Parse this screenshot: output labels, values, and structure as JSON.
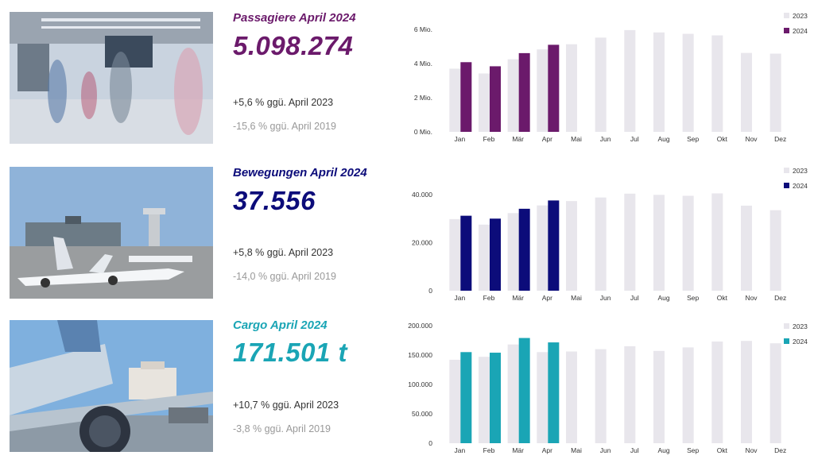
{
  "panels": [
    {
      "id": "passengers",
      "title": "Passagiere April 2024",
      "value": "5.098.274",
      "comparison_2023": "+5,6 % ggü. April 2023",
      "comparison_2019": "-15,6 % ggü. April 2019",
      "accent_color": "#6b1a6b",
      "photo_icon": "airport-terminal-photo"
    },
    {
      "id": "movements",
      "title": "Bewegungen April 2024",
      "value": "37.556",
      "comparison_2023": "+5,8 % ggü. April 2023",
      "comparison_2019": "-14,0 % ggü. April 2019",
      "accent_color": "#0c0c7a",
      "photo_icon": "airplane-apron-photo"
    },
    {
      "id": "cargo",
      "title": "Cargo April 2024",
      "value": "171.501 t",
      "comparison_2023": "+10,7 % ggü. April 2023",
      "comparison_2019": "-3,8 % ggü. April 2019",
      "accent_color": "#1aa5b5",
      "photo_icon": "cargo-loading-photo"
    }
  ],
  "chart_data": [
    {
      "type": "bar",
      "categories": [
        "Jan",
        "Feb",
        "Mär",
        "Apr",
        "Mai",
        "Jun",
        "Jul",
        "Aug",
        "Sep",
        "Okt",
        "Nov",
        "Dez"
      ],
      "series": [
        {
          "name": "2023",
          "color": "#e8e6ec",
          "values": [
            3700000,
            3420000,
            4250000,
            4830000,
            5130000,
            5520000,
            5960000,
            5820000,
            5740000,
            5650000,
            4620000,
            4580000
          ]
        },
        {
          "name": "2024",
          "color": "#6b1a6b",
          "values": [
            4080000,
            3840000,
            4610000,
            5098274,
            null,
            null,
            null,
            null,
            null,
            null,
            null,
            null
          ]
        }
      ],
      "ylim": [
        0,
        6000000
      ],
      "yticks": [
        0,
        2000000,
        4000000,
        6000000
      ],
      "ytick_labels": [
        "0 Mio.",
        "2 Mio.",
        "4 Mio.",
        "6 Mio."
      ],
      "legend": "top-right"
    },
    {
      "type": "bar",
      "categories": [
        "Jan",
        "Feb",
        "Mär",
        "Apr",
        "Mai",
        "Jun",
        "Jul",
        "Aug",
        "Sep",
        "Okt",
        "Nov",
        "Dez"
      ],
      "series": [
        {
          "name": "2023",
          "color": "#e8e6ec",
          "values": [
            29800,
            27500,
            32300,
            35500,
            37300,
            38800,
            40400,
            39900,
            39500,
            40500,
            35400,
            33500
          ]
        },
        {
          "name": "2024",
          "color": "#0c0c7a",
          "values": [
            31200,
            30000,
            34100,
            37556,
            null,
            null,
            null,
            null,
            null,
            null,
            null,
            null
          ]
        }
      ],
      "ylim": [
        0,
        40000
      ],
      "yticks": [
        0,
        20000,
        40000
      ],
      "ytick_labels": [
        "0",
        "20.000",
        "40.000"
      ],
      "legend": "top-right"
    },
    {
      "type": "bar",
      "categories": [
        "Jan",
        "Feb",
        "Mär",
        "Apr",
        "Mai",
        "Jun",
        "Jul",
        "Aug",
        "Sep",
        "Okt",
        "Nov",
        "Dez"
      ],
      "series": [
        {
          "name": "2023",
          "color": "#e8e6ec",
          "values": [
            142000,
            147000,
            168000,
            155000,
            156000,
            160000,
            165000,
            157000,
            163000,
            173000,
            174000,
            170000
          ]
        },
        {
          "name": "2024",
          "color": "#1aa5b5",
          "values": [
            155000,
            154000,
            179000,
            171501,
            null,
            null,
            null,
            null,
            null,
            null,
            null,
            null
          ]
        }
      ],
      "ylim": [
        0,
        200000
      ],
      "yticks": [
        0,
        50000,
        100000,
        150000,
        200000
      ],
      "ytick_labels": [
        "0",
        "50.000",
        "100.000",
        "150.000",
        "200.000"
      ],
      "legend": "top-right"
    }
  ]
}
